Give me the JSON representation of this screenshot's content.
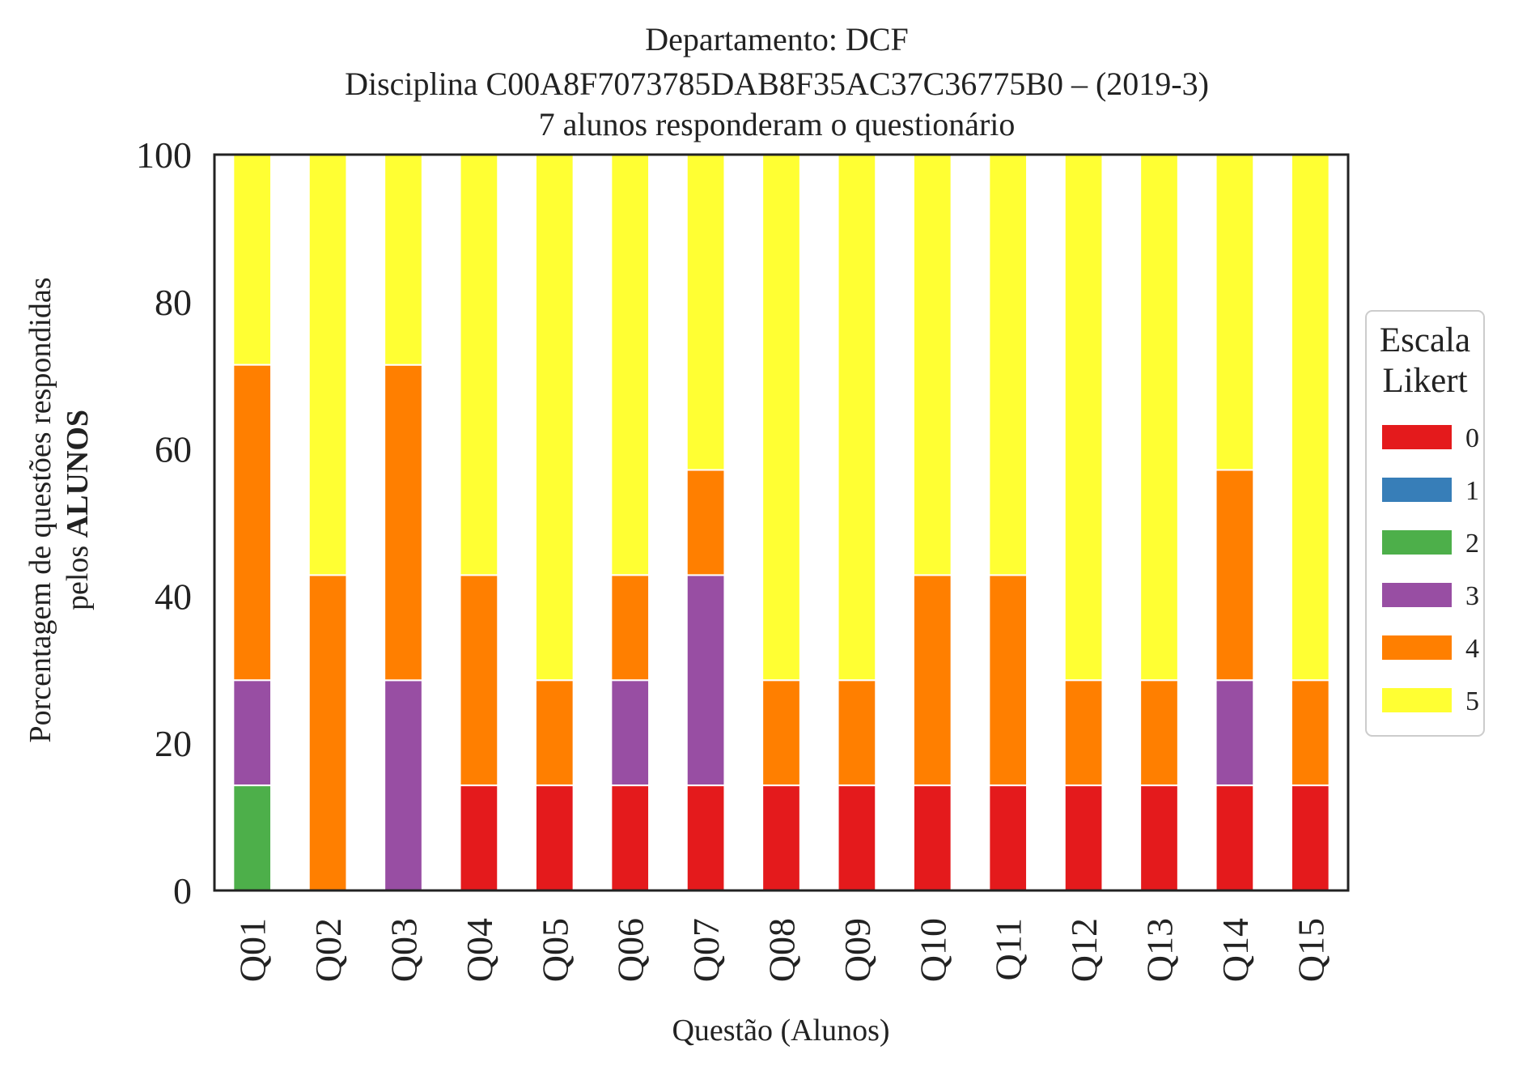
{
  "chart_data": {
    "type": "bar",
    "stacked": true,
    "title_lines": [
      "Departamento: DCF",
      "Disciplina C00A8F7073785DAB8F35AC37C36775B0 – (2019-3)",
      "7 alunos responderam o questionário"
    ],
    "xlabel": "Questão (Alunos)",
    "ylabel_line1": "Porcentagem de questões respondidas",
    "ylabel_line2_prefix": "pelos ",
    "ylabel_line2_bold": "ALUNOS",
    "ylim": [
      0,
      100
    ],
    "yticks": [
      "0",
      "20",
      "40",
      "60",
      "80",
      "100"
    ],
    "grid": false,
    "categories": [
      "Q01",
      "Q02",
      "Q03",
      "Q04",
      "Q05",
      "Q06",
      "Q07",
      "Q08",
      "Q09",
      "Q10",
      "Q11",
      "Q12",
      "Q13",
      "Q14",
      "Q15"
    ],
    "series": [
      {
        "name": "0",
        "color": "#e41a1c",
        "values": [
          0,
          0,
          0,
          14.29,
          14.29,
          14.29,
          14.29,
          14.29,
          14.29,
          14.29,
          14.29,
          14.29,
          14.29,
          14.29,
          14.29
        ]
      },
      {
        "name": "1",
        "color": "#377eb8",
        "values": [
          0,
          0,
          0,
          0,
          0,
          0,
          0,
          0,
          0,
          0,
          0,
          0,
          0,
          0,
          0
        ]
      },
      {
        "name": "2",
        "color": "#4daf4a",
        "values": [
          14.29,
          0,
          0,
          0,
          0,
          0,
          0,
          0,
          0,
          0,
          0,
          0,
          0,
          0,
          0
        ]
      },
      {
        "name": "3",
        "color": "#984ea3",
        "values": [
          14.29,
          0,
          28.57,
          0,
          0,
          14.29,
          28.57,
          0,
          0,
          0,
          0,
          0,
          0,
          14.29,
          0
        ]
      },
      {
        "name": "4",
        "color": "#ff7f00",
        "values": [
          42.86,
          42.86,
          42.86,
          28.57,
          14.29,
          14.29,
          14.29,
          14.29,
          14.29,
          28.57,
          28.57,
          14.29,
          14.29,
          28.57,
          14.29
        ]
      },
      {
        "name": "5",
        "color": "#ffff33",
        "values": [
          28.57,
          57.14,
          28.57,
          57.14,
          71.43,
          57.14,
          42.86,
          71.43,
          71.43,
          57.14,
          57.14,
          71.43,
          71.43,
          42.86,
          71.43
        ]
      }
    ],
    "legend": {
      "title_lines": [
        "Escala",
        "Likert"
      ],
      "placement": "right"
    }
  }
}
